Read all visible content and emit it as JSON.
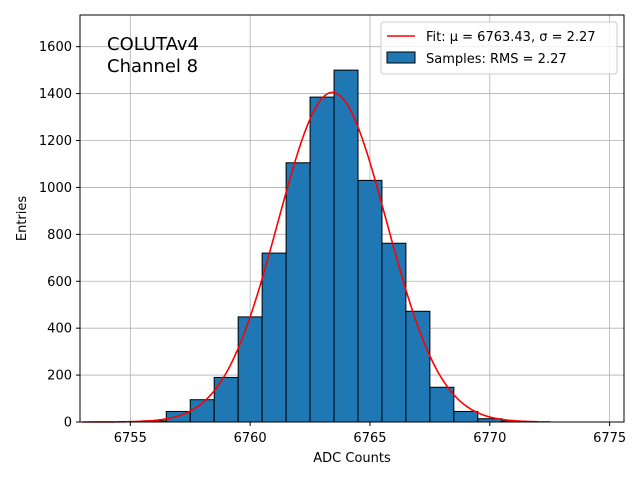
{
  "chart_data": {
    "type": "bar",
    "xlabel": "ADC Counts",
    "ylabel": "Entries",
    "xlim": [
      6752.9,
      6775.6
    ],
    "ylim": [
      0,
      1735
    ],
    "xticks": [
      6755,
      6760,
      6765,
      6770,
      6775
    ],
    "yticks": [
      0,
      200,
      400,
      600,
      800,
      1000,
      1200,
      1400,
      1600
    ],
    "grid": true,
    "legend_position": "top-right",
    "annotation": [
      "COLUTAv4",
      "Channel 8"
    ],
    "legend": {
      "fit_label": "Fit: μ = 6763.43, σ = 2.27",
      "hist_label": "Samples: RMS = 2.27"
    },
    "colors": {
      "bars": "#1f77b4",
      "bar_edge": "#000000",
      "fit": "#ff0000",
      "grid": "#b0b0b0"
    },
    "bins": {
      "centers": [
        6755,
        6756,
        6757,
        6758,
        6759,
        6760,
        6761,
        6762,
        6763,
        6764,
        6765,
        6766,
        6767,
        6768,
        6769,
        6770,
        6771,
        6772
      ],
      "width": 1,
      "values": [
        1,
        5,
        45,
        95,
        190,
        448,
        720,
        1105,
        1385,
        1500,
        1030,
        762,
        472,
        148,
        45,
        14,
        4,
        1
      ]
    },
    "fit": {
      "type": "gaussian",
      "mu": 6763.43,
      "sigma": 2.27,
      "amplitude": 1405,
      "x_range": [
        6753,
        6772
      ]
    }
  }
}
